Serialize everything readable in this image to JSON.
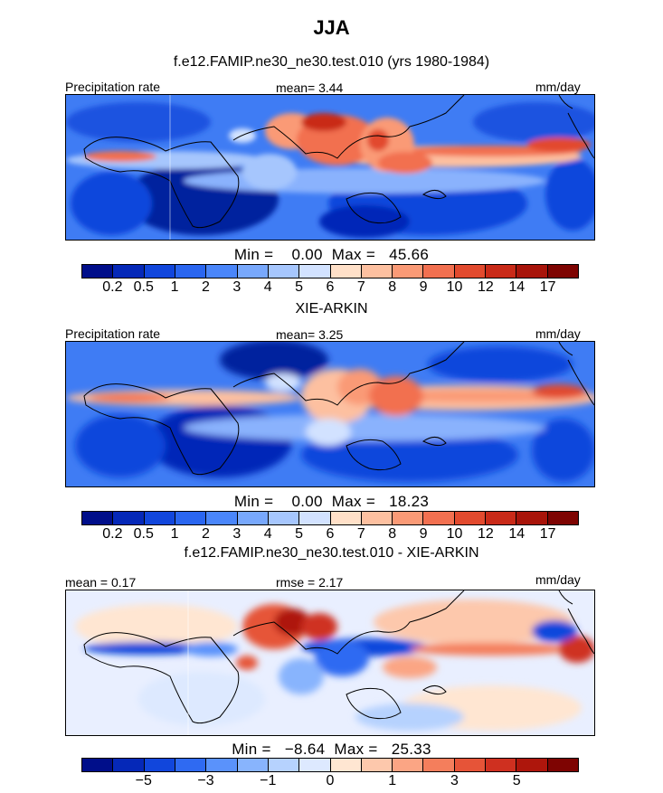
{
  "title": "JJA",
  "panel1": {
    "heading": "f.e12.FAMIP.ne30_ne30.test.010 (yrs 1980-1984)",
    "left_label": "Precipitation rate",
    "mean_text": "mean=    3.44",
    "units": "mm/day",
    "minmax_text": "Min =    0.00  Max =   45.66"
  },
  "panel2": {
    "heading": "XIE-ARKIN",
    "left_label": "Precipitation rate",
    "mean_text": "mean=    3.25",
    "units": "mm/day",
    "minmax_text": "Min =    0.00  Max =   18.23"
  },
  "panel3": {
    "heading": "f.e12.FAMIP.ne30_ne30.test.010 - XIE-ARKIN",
    "left_label": "mean =    0.17",
    "rmse_text": "rmse =    2.17",
    "units": "mm/day",
    "minmax_text": "Min =   −8.64  Max =   25.33"
  },
  "chart_data": [
    {
      "type": "heatmap",
      "title": "f.e12.FAMIP.ne30_ne30.test.010 (yrs 1980-1984)",
      "variable": "Precipitation rate",
      "units": "mm/day",
      "mean": 3.44,
      "min": 0.0,
      "max": 45.66,
      "colorbar_levels": [
        0.2,
        0.5,
        1,
        2,
        3,
        4,
        5,
        6,
        7,
        8,
        9,
        10,
        12,
        14,
        17
      ],
      "colorbar_tick_labels": [
        "0.2",
        "0.5",
        "1",
        "2",
        "3",
        "4",
        "5",
        "6",
        "7",
        "8",
        "9",
        "10",
        "12",
        "14",
        "17"
      ]
    },
    {
      "type": "heatmap",
      "title": "XIE-ARKIN",
      "variable": "Precipitation rate",
      "units": "mm/day",
      "mean": 3.25,
      "min": 0.0,
      "max": 18.23,
      "colorbar_levels": [
        0.2,
        0.5,
        1,
        2,
        3,
        4,
        5,
        6,
        7,
        8,
        9,
        10,
        12,
        14,
        17
      ],
      "colorbar_tick_labels": [
        "0.2",
        "0.5",
        "1",
        "2",
        "3",
        "4",
        "5",
        "6",
        "7",
        "8",
        "9",
        "10",
        "12",
        "14",
        "17"
      ]
    },
    {
      "type": "heatmap",
      "title": "f.e12.FAMIP.ne30_ne30.test.010 - XIE-ARKIN",
      "units": "mm/day",
      "mean": 0.17,
      "rmse": 2.17,
      "min": -8.64,
      "max": 25.33,
      "colorbar_tick_labels": [
        "−5",
        "−3",
        "−1",
        "0",
        "1",
        "3",
        "5"
      ]
    }
  ],
  "colors": {
    "scale": [
      "#000e8a",
      "#0528b8",
      "#1146dc",
      "#2a66f0",
      "#4a86fa",
      "#78a8fc",
      "#a6c6fd",
      "#d2e2ff",
      "#ffe0c8",
      "#fdc0a0",
      "#fa9a76",
      "#f27050",
      "#e24a2e",
      "#c92a18",
      "#a8140a",
      "#7e0402"
    ],
    "diff_scale": [
      "#000e8a",
      "#0528b8",
      "#1146dc",
      "#2f6af2",
      "#5a92fb",
      "#88b4fd",
      "#b6d2fe",
      "#dde9ff",
      "#ffe6d2",
      "#fdc8ac",
      "#fba584",
      "#f47e5c",
      "#e65438",
      "#cf3020",
      "#ae160c",
      "#7e0402"
    ]
  }
}
